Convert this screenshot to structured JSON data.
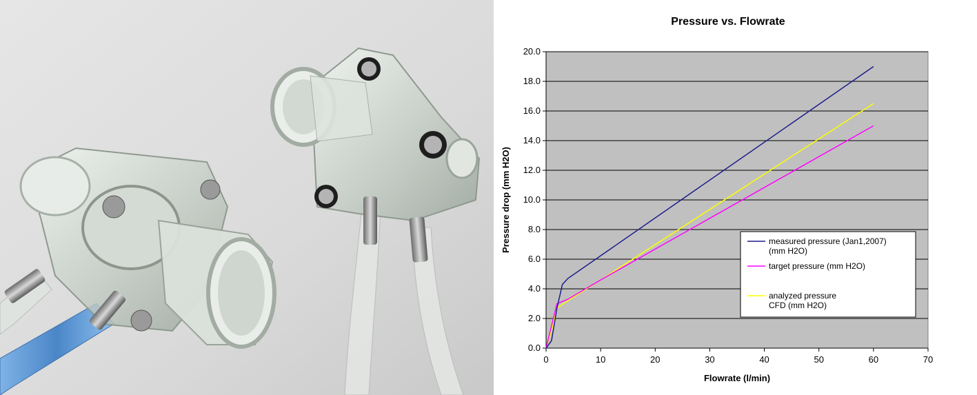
{
  "chart_data": {
    "type": "line",
    "title": "Pressure vs. Flowrate",
    "xlabel": "Flowrate (l/min)",
    "ylabel": "Pressure drop (mm H2O)",
    "xlim": [
      0,
      70
    ],
    "ylim": [
      0,
      20
    ],
    "x_ticks": [
      "0",
      "10",
      "20",
      "30",
      "40",
      "50",
      "60",
      "70"
    ],
    "y_ticks": [
      "0.0",
      "2.0",
      "4.0",
      "6.0",
      "8.0",
      "10.0",
      "12.0",
      "14.0",
      "16.0",
      "18.0",
      "20.0"
    ],
    "grid": "horizontal",
    "legend_position": "lower-right",
    "series": [
      {
        "name": "measured pressure (Jan1,2007) (mm H2O)",
        "name_lines": [
          "measured pressure (Jan1,2007)",
          "(mm H2O)"
        ],
        "color": "#1c1c8c",
        "points": [
          [
            0,
            0
          ],
          [
            1,
            0.5
          ],
          [
            2,
            2.7
          ],
          [
            3,
            4.3
          ],
          [
            4,
            4.7
          ],
          [
            60,
            19.0
          ]
        ]
      },
      {
        "name": "target pressure (mm H2O)",
        "name_lines": [
          "target pressure (mm H2O)"
        ],
        "color": "#ff00ff",
        "points": [
          [
            0,
            0
          ],
          [
            1,
            1.5
          ],
          [
            2,
            3.0
          ],
          [
            4,
            3.3
          ],
          [
            10,
            4.6
          ],
          [
            60,
            15.0
          ]
        ]
      },
      {
        "name": "analyzed pressure CFD (mm H2O)",
        "name_lines": [
          "analyzed pressure",
          "CFD (mm H2O)"
        ],
        "color": "#ffff00",
        "points": [
          [
            0,
            0
          ],
          [
            1,
            1.2
          ],
          [
            2,
            2.7
          ],
          [
            4,
            3.2
          ],
          [
            10,
            4.6
          ],
          [
            60,
            16.5
          ]
        ]
      }
    ]
  },
  "colors": {
    "plot_background": "#c0c0c0",
    "gridline": "#000000"
  }
}
